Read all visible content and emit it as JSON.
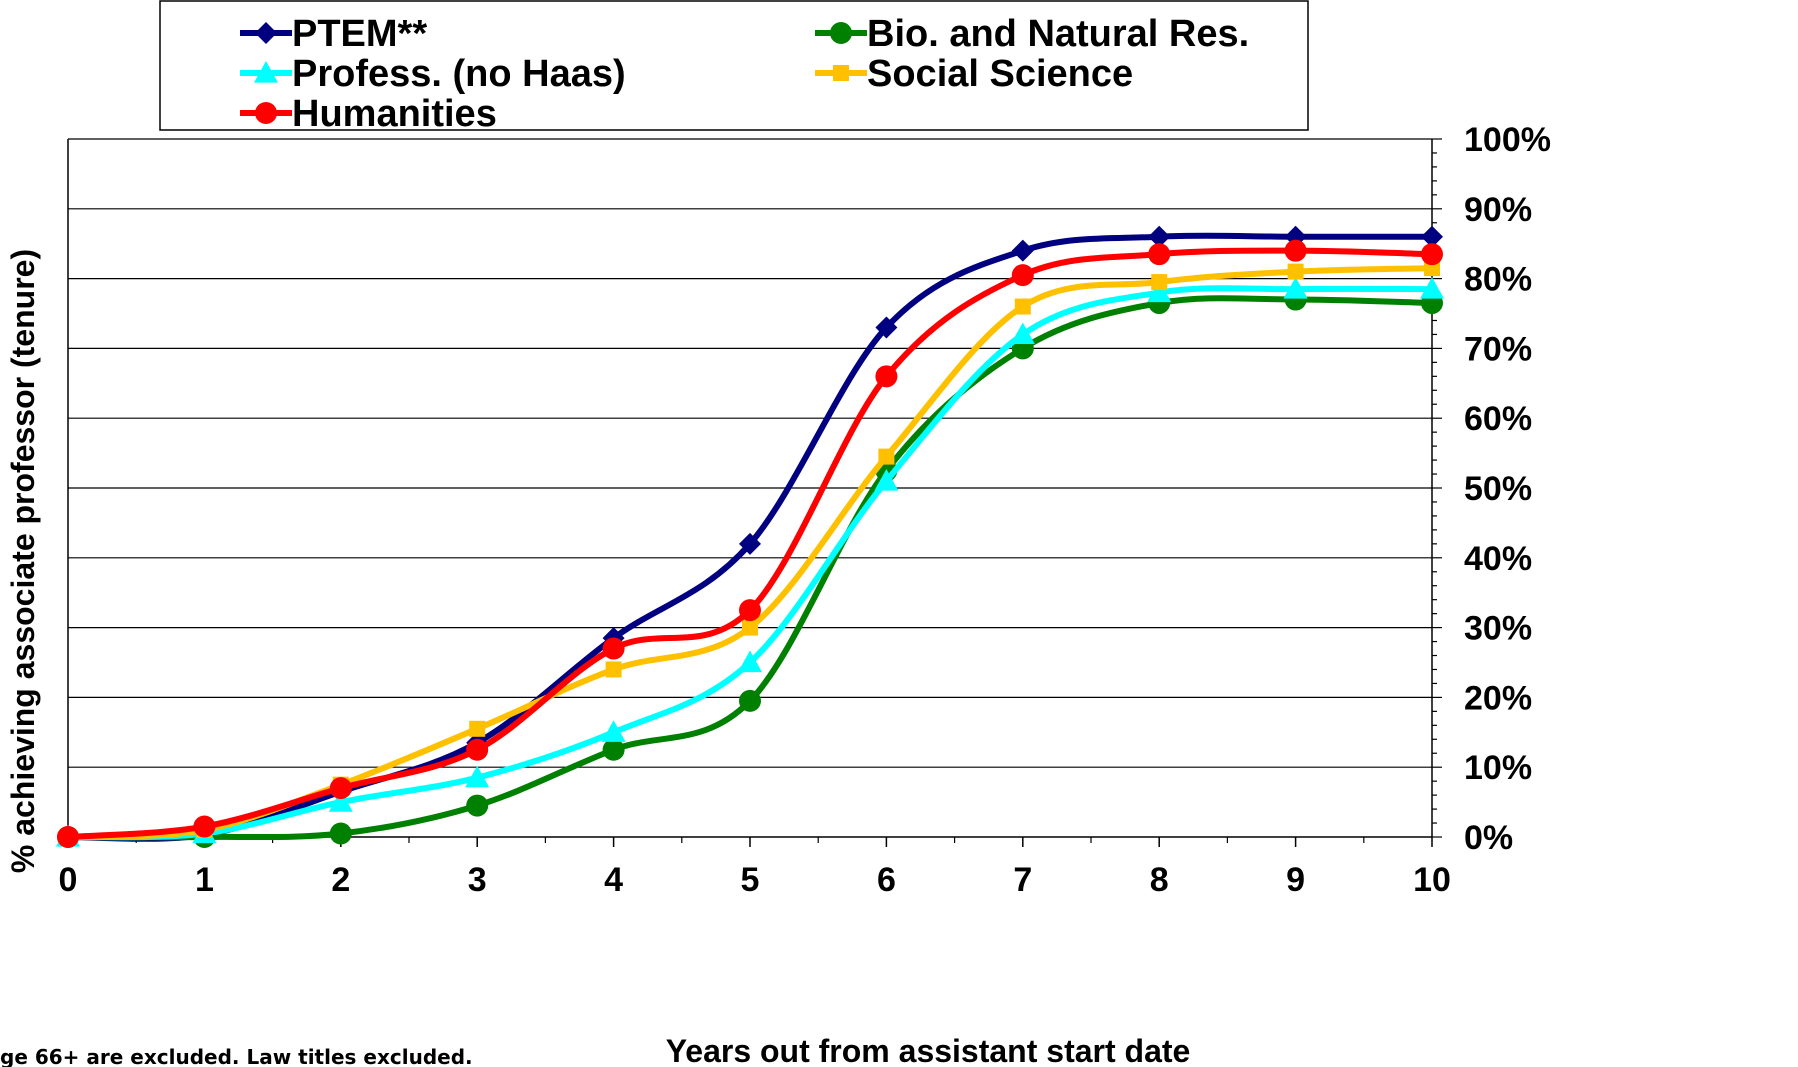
{
  "chart_data": {
    "type": "line",
    "title": "",
    "xlabel": "Years out from assistant start date",
    "ylabel": "% achieving associate professor (tenure)",
    "x": [
      0,
      1,
      2,
      3,
      4,
      5,
      6,
      7,
      8,
      9,
      10
    ],
    "x_tick_labels": [
      "0",
      "1",
      "2",
      "3",
      "4",
      "5",
      "6",
      "7",
      "8",
      "9",
      "10"
    ],
    "y_tick_labels": [
      "0%",
      "10%",
      "20%",
      "30%",
      "40%",
      "50%",
      "60%",
      "70%",
      "80%",
      "90%",
      "100%"
    ],
    "xlim": [
      0,
      10
    ],
    "ylim": [
      0,
      100
    ],
    "y_unit": "%",
    "grid": "horizontal",
    "legend_position": "top",
    "series": [
      {
        "name": "PTEM**",
        "color": "#000080",
        "marker": "diamond",
        "values": [
          0,
          0.3,
          6.5,
          13.5,
          28.5,
          42,
          73,
          84,
          86,
          86,
          86
        ]
      },
      {
        "name": "Bio. and Natural Res.",
        "color": "#008000",
        "marker": "circle",
        "values": [
          0,
          0,
          0.5,
          4.5,
          12.5,
          19.5,
          52.5,
          70,
          76.5,
          77,
          76.5
        ]
      },
      {
        "name": "Profess. (no Haas)",
        "color": "#00FFFF",
        "marker": "triangle",
        "values": [
          0,
          0.5,
          5,
          8.5,
          15,
          25,
          51,
          72,
          78,
          78.5,
          78.5
        ]
      },
      {
        "name": "Social Science",
        "color": "#FFC000",
        "marker": "square",
        "values": [
          0,
          1,
          7.5,
          15.5,
          24,
          30,
          54.5,
          76,
          79.5,
          81,
          81.5
        ]
      },
      {
        "name": "Humanities",
        "color": "#FF0000",
        "marker": "circle",
        "values": [
          0,
          1.5,
          7,
          12.5,
          27,
          32.5,
          66,
          80.5,
          83.5,
          84,
          83.5
        ]
      }
    ],
    "footnote": "ge 66+ are excluded. Law titles excluded."
  }
}
